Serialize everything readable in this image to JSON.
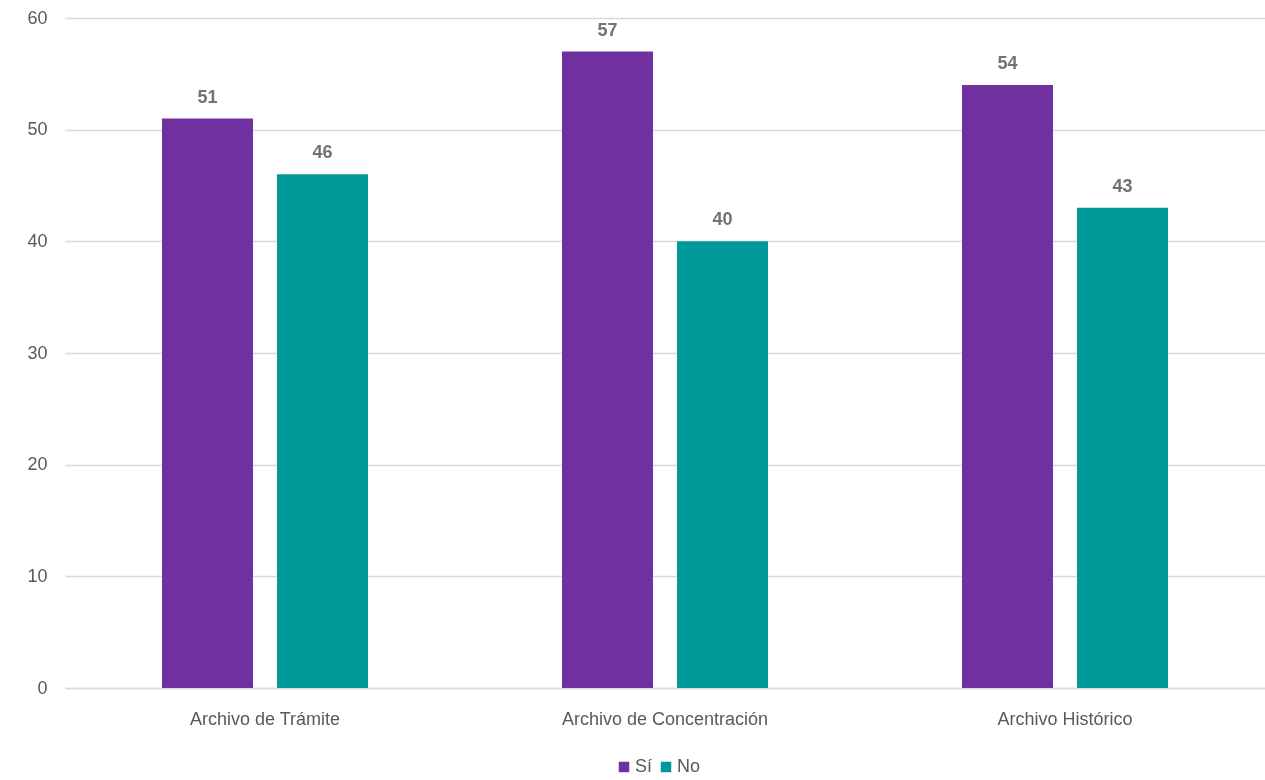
{
  "chart_data": {
    "type": "bar",
    "categories": [
      "Archivo de Trámite",
      "Archivo de Concentración",
      "Archivo Histórico"
    ],
    "series": [
      {
        "name": "Sí",
        "color": "#7030a0",
        "values": [
          51,
          57,
          54
        ]
      },
      {
        "name": "No",
        "color": "#009999",
        "values": [
          46,
          40,
          43
        ]
      }
    ],
    "ylim": [
      0,
      60
    ],
    "yticks": [
      0,
      10,
      20,
      30,
      40,
      50,
      60
    ],
    "grid": "y",
    "legend": "bottom",
    "data_labels": true
  }
}
